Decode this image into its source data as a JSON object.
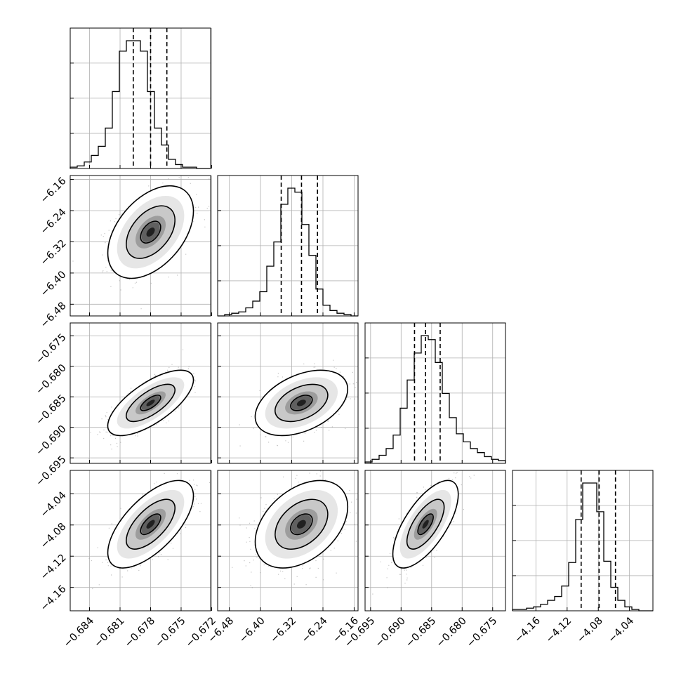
{
  "chart_data": {
    "type": "corner",
    "parameters": [
      {
        "ticks": [
          -0.684,
          -0.681,
          -0.678,
          -0.675,
          -0.672
        ],
        "tick_labels": [
          "−0.684",
          "−0.681",
          "−0.678",
          "−0.675",
          "−0.672"
        ],
        "range": [
          -0.6859,
          -0.6721
        ],
        "quantiles": [
          -0.6797,
          -0.678,
          -0.6764
        ],
        "histogram": [
          1,
          2,
          5,
          10,
          17,
          31,
          59,
          90,
          98,
          98,
          90,
          59,
          31,
          18,
          7,
          3,
          1,
          1,
          0,
          0
        ]
      },
      {
        "ticks": [
          -6.48,
          -6.4,
          -6.32,
          -6.24,
          -6.16
        ],
        "tick_labels": [
          "−6.48",
          "−6.40",
          "−6.32",
          "−6.24",
          "−6.16"
        ],
        "range": [
          -6.51,
          -6.15
        ],
        "quantiles": [
          -6.347,
          -6.295,
          -6.254
        ],
        "histogram": [
          0,
          1,
          2,
          3,
          6,
          11,
          18,
          37,
          55,
          83,
          95,
          92,
          68,
          45,
          20,
          8,
          4,
          2,
          1,
          0
        ]
      },
      {
        "ticks": [
          -0.695,
          -0.69,
          -0.685,
          -0.68,
          -0.675
        ],
        "tick_labels": [
          "−0.695",
          "−0.690",
          "−0.685",
          "−0.680",
          "−0.675"
        ],
        "range": [
          -0.6959,
          -0.6729
        ],
        "quantiles": [
          -0.6878,
          -0.686,
          -0.6836
        ],
        "histogram": [
          1,
          3,
          6,
          11,
          21,
          41,
          62,
          82,
          95,
          92,
          75,
          52,
          34,
          22,
          16,
          11,
          8,
          5,
          3,
          2
        ]
      },
      {
        "ticks": [
          -4.16,
          -4.12,
          -4.08,
          -4.04
        ],
        "tick_labels": [
          "−4.16",
          "−4.12",
          "−4.08",
          "−4.04"
        ],
        "range": [
          -4.19,
          -4.01
        ],
        "quantiles": [
          -4.102,
          -4.079,
          -4.058
        ],
        "histogram": [
          1,
          1,
          2,
          3,
          5,
          8,
          11,
          19,
          37,
          70,
          98,
          98,
          76,
          38,
          18,
          8,
          3,
          1,
          0,
          0
        ]
      }
    ],
    "contour_levels": [
      0.39,
      0.86,
      0.99
    ],
    "grid": true,
    "histograms_on_diagonal": true,
    "quantile_line_style": "dashed",
    "colors": {
      "line": "#000000",
      "grid": "#b0b0b0",
      "points": "#7f7f7f"
    }
  }
}
